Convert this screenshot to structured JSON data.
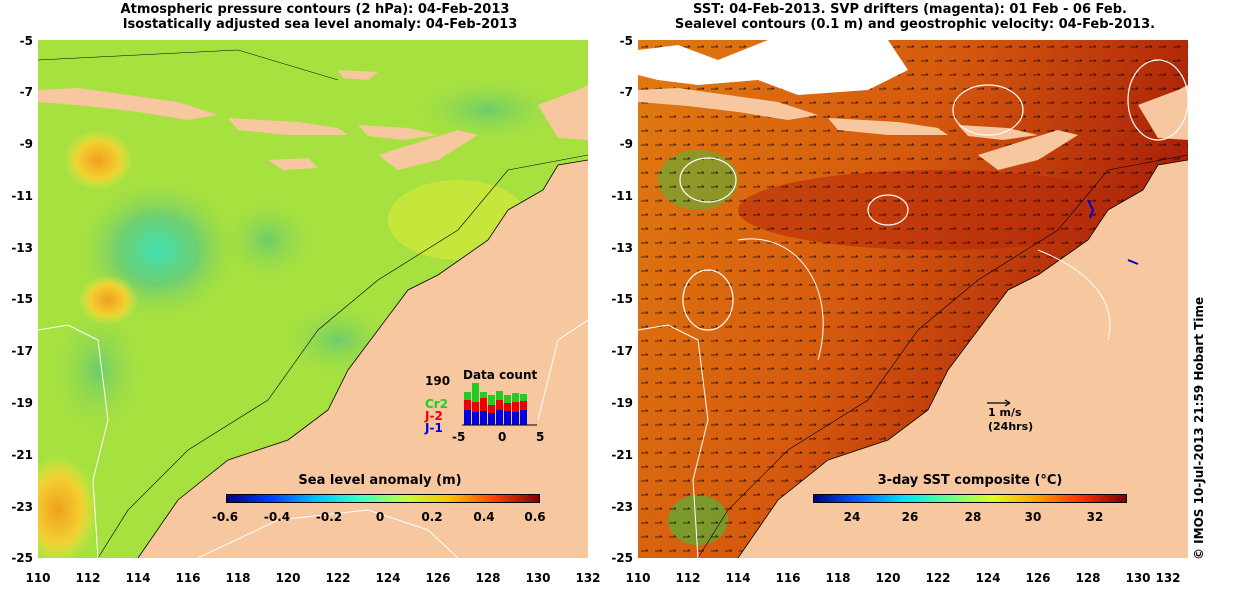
{
  "left_panel": {
    "title_line1": "Atmospheric pressure contours (2 hPa): 04-Feb-2013",
    "title_line2": "Isostatically adjusted sea level anomaly: 04-Feb-2013",
    "colorbar_label": "Sea level anomaly (m)",
    "colorbar_ticks": [
      "-0.6",
      "-0.4",
      "-0.2",
      "0",
      "0.2",
      "0.4",
      "0.6"
    ],
    "inset": {
      "max_label": "190",
      "title": "Data count",
      "series": [
        {
          "name": "Cr2",
          "color": "#22cc22"
        },
        {
          "name": "J-2",
          "color": "#ee0000"
        },
        {
          "name": "J-1",
          "color": "#0000dd"
        }
      ],
      "x_ticks": [
        "-5",
        "0",
        "5"
      ]
    }
  },
  "right_panel": {
    "title_line1": "SST: 04-Feb-2013. SVP drifters (magenta): 01 Feb - 06 Feb.",
    "title_line2": "Sealevel contours (0.1 m) and geostrophic velocity: 04-Feb-2013.",
    "colorbar_label": "3-day SST composite (°C)",
    "colorbar_ticks": [
      "24",
      "26",
      "28",
      "30",
      "32"
    ],
    "vector_scale": {
      "line1": "1 m/s",
      "line2": "(24hrs)"
    }
  },
  "y_ticks": [
    "-5",
    "-7",
    "-9",
    "-11",
    "-13",
    "-15",
    "-17",
    "-19",
    "-21",
    "-23",
    "-25"
  ],
  "x_ticks": [
    "110",
    "112",
    "114",
    "116",
    "118",
    "120",
    "122",
    "124",
    "126",
    "128",
    "130",
    "132"
  ],
  "credit": "© IMOS 10-Jul-2013 21:59 Hobart Time",
  "colors": {
    "land": "#f7c7a0",
    "ssla_colormap": [
      "#00007f",
      "#0040ff",
      "#00c0ff",
      "#40ffc0",
      "#c0ff40",
      "#ffc000",
      "#ff4000",
      "#7f0000"
    ],
    "sst_colormap": [
      "#00007f",
      "#0060ff",
      "#00e0ff",
      "#60ff90",
      "#e0ff20",
      "#ffa000",
      "#ff3000",
      "#800000"
    ]
  }
}
